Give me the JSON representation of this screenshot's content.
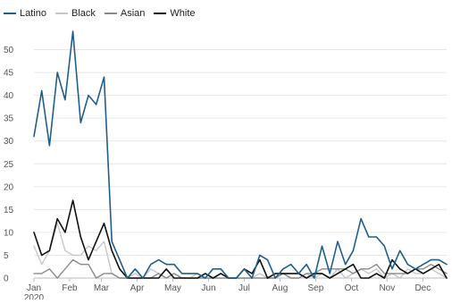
{
  "chart_data": {
    "type": "line",
    "title": "",
    "xlabel": "",
    "ylabel": "",
    "ylim": [
      0,
      55
    ],
    "yticks": [
      0,
      5,
      10,
      15,
      20,
      25,
      30,
      35,
      40,
      45,
      50
    ],
    "grid": "horizontal",
    "legend_position": "top-left",
    "x_weeks": 52,
    "x_month_labels": [
      {
        "label": "Jan",
        "week": 0
      },
      {
        "label": "Feb",
        "week": 4.5
      },
      {
        "label": "Mar",
        "week": 8.5
      },
      {
        "label": "Apr",
        "week": 13
      },
      {
        "label": "May",
        "week": 17.5
      },
      {
        "label": "Jun",
        "week": 22
      },
      {
        "label": "Jul",
        "week": 26.5
      },
      {
        "label": "Aug",
        "week": 31
      },
      {
        "label": "Sep",
        "week": 35.5
      },
      {
        "label": "Oct",
        "week": 40
      },
      {
        "label": "Nov",
        "week": 44.5
      },
      {
        "label": "Dec",
        "week": 49
      }
    ],
    "year_label": "2020",
    "series": [
      {
        "name": "Latino",
        "color": "#1f5f8b",
        "width": 1.6,
        "values": [
          31,
          41,
          29,
          45,
          39,
          54,
          34,
          40,
          38,
          44,
          8,
          4,
          0,
          2,
          0,
          3,
          4,
          3,
          3,
          1,
          1,
          1,
          0,
          2,
          2,
          0,
          0,
          2,
          0,
          5,
          4,
          0,
          2,
          3,
          1,
          3,
          0,
          7,
          1,
          8,
          3,
          6,
          13,
          9,
          9,
          7,
          2,
          6,
          3,
          2,
          3,
          4,
          4,
          3
        ]
      },
      {
        "name": "Black",
        "color": "#c8c8c8",
        "width": 1.4,
        "values": [
          7,
          3,
          6,
          12,
          6,
          5,
          5,
          7,
          6,
          8,
          1,
          0,
          0,
          1,
          0,
          2,
          1,
          0,
          1,
          0,
          0,
          1,
          0,
          0,
          1,
          0,
          0,
          0,
          0,
          1,
          0,
          0,
          1,
          0,
          0,
          1,
          0,
          1,
          0,
          2,
          0,
          1,
          2,
          1,
          2,
          0,
          1,
          0,
          2,
          1,
          1,
          2,
          1,
          0
        ]
      },
      {
        "name": "Asian",
        "color": "#8a8a8a",
        "width": 1.4,
        "values": [
          1,
          1,
          2,
          0,
          2,
          4,
          3,
          3,
          0,
          1,
          1,
          0,
          0,
          0,
          0,
          0,
          1,
          0,
          1,
          0,
          0,
          0,
          0,
          0,
          0,
          0,
          0,
          0,
          0,
          0,
          0,
          0,
          1,
          0,
          0,
          1,
          1,
          2,
          2,
          2,
          2,
          1,
          2,
          2,
          3,
          1,
          1,
          1,
          1,
          2,
          2,
          3,
          2,
          1
        ]
      },
      {
        "name": "White",
        "color": "#111111",
        "width": 1.6,
        "values": [
          10,
          5,
          6,
          13,
          10,
          17,
          9,
          4,
          8,
          12,
          6,
          2,
          0,
          0,
          0,
          0,
          0,
          2,
          0,
          0,
          0,
          0,
          1,
          0,
          1,
          0,
          0,
          2,
          1,
          4,
          0,
          1,
          1,
          1,
          1,
          0,
          1,
          1,
          0,
          1,
          2,
          3,
          0,
          0,
          1,
          0,
          4,
          2,
          1,
          2,
          1,
          2,
          3,
          0
        ]
      }
    ]
  }
}
